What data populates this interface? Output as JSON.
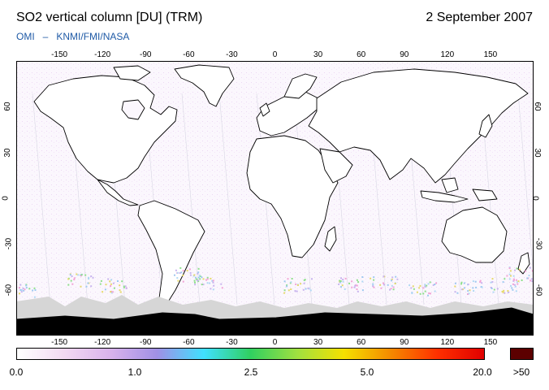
{
  "header": {
    "title": "SO2 vertical column [DU] (TRM)",
    "date": "2 September 2007",
    "source_left": "OMI",
    "source_sep": "–",
    "source_right": "KNMI/FMI/NASA"
  },
  "map": {
    "lon_ticks": [
      "-150",
      "-120",
      "-90",
      "-60",
      "-30",
      "0",
      "30",
      "60",
      "90",
      "120",
      "150"
    ],
    "lat_ticks": [
      "60",
      "30",
      "0",
      "-30",
      "-60"
    ],
    "lon_range": [
      -180,
      180
    ],
    "lat_range": [
      -90,
      90
    ],
    "land_fill": "#ffffff",
    "no_data_fill": "#aaaaaa",
    "coast_color": "#000000"
  },
  "colorbar": {
    "labels": [
      "0.0",
      "1.0",
      "2.5",
      "5.0",
      "20.0",
      ">50"
    ],
    "overflow_color": "#5c0000",
    "stops": [
      "#ffffff",
      "#f2d9f2",
      "#d9b3ec",
      "#a090e6",
      "#40e0ff",
      "#30d060",
      "#a0e040",
      "#f5e000",
      "#f58a00",
      "#ff3000",
      "#e00000"
    ]
  }
}
